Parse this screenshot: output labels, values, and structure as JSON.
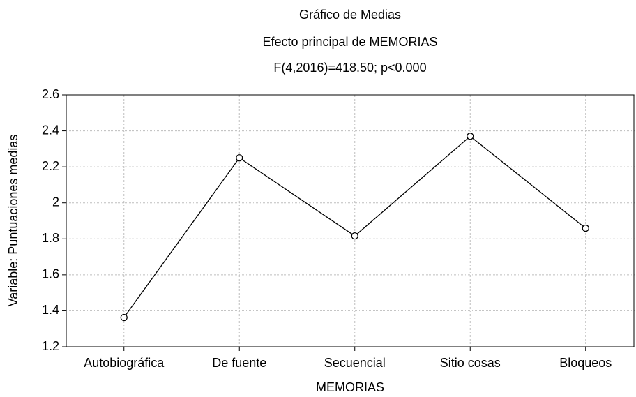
{
  "chart_data": {
    "type": "line",
    "title": "Gráfico de Medias",
    "subtitle": "Efecto principal de MEMORIAS",
    "annotation": "F(4,2016)=418.50; p<0.000",
    "x_label": "MEMORIAS",
    "y_label": "Variable: Puntuaciones medias",
    "categories": [
      "Autobiográfica",
      "De fuente",
      "Secuencial",
      "Sitio cosas",
      "Bloqueos"
    ],
    "values": [
      1.363,
      2.25,
      1.816,
      2.37,
      1.859
    ],
    "color": "#000000",
    "ylim": [
      1.2,
      2.6
    ],
    "yticks": [
      1.2,
      1.4,
      1.6,
      1.8,
      2,
      2.2,
      2.4,
      2.6
    ],
    "grid": true
  }
}
